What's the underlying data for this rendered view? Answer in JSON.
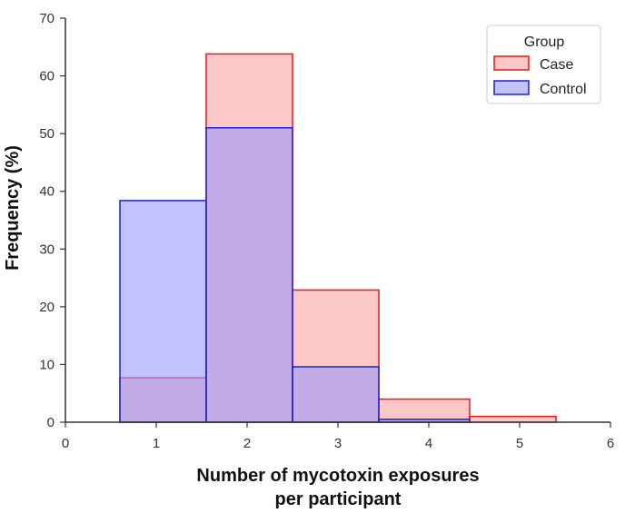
{
  "chart_data": {
    "type": "bar",
    "subtype": "histogram-step",
    "xlabel_line1": "Number of mycotoxin exposures",
    "xlabel_line2": "per participant",
    "ylabel": "Frequency (%)",
    "xlim": [
      0,
      6
    ],
    "ylim": [
      0,
      70
    ],
    "xticks": [
      "0",
      "1",
      "2",
      "3",
      "4",
      "5",
      "6"
    ],
    "yticks": [
      "0",
      "10",
      "20",
      "30",
      "40",
      "50",
      "60",
      "70"
    ],
    "grid": false,
    "legend": {
      "title": "Group",
      "placement": "top-right"
    },
    "bin_edges": [
      0.6,
      1.55,
      2.5,
      3.45,
      4.45,
      5.4
    ],
    "series": [
      {
        "name": "Case",
        "edge_color": "#e41a1c",
        "fill_color": "#fbb4b4",
        "values": [
          7.7,
          63.8,
          22.9,
          4.0,
          1.0
        ]
      },
      {
        "name": "Control",
        "edge_color": "#1f1fc8",
        "fill_color": "#9999ff",
        "values": [
          38.4,
          51.0,
          9.6,
          0.5,
          0.0
        ]
      }
    ]
  }
}
